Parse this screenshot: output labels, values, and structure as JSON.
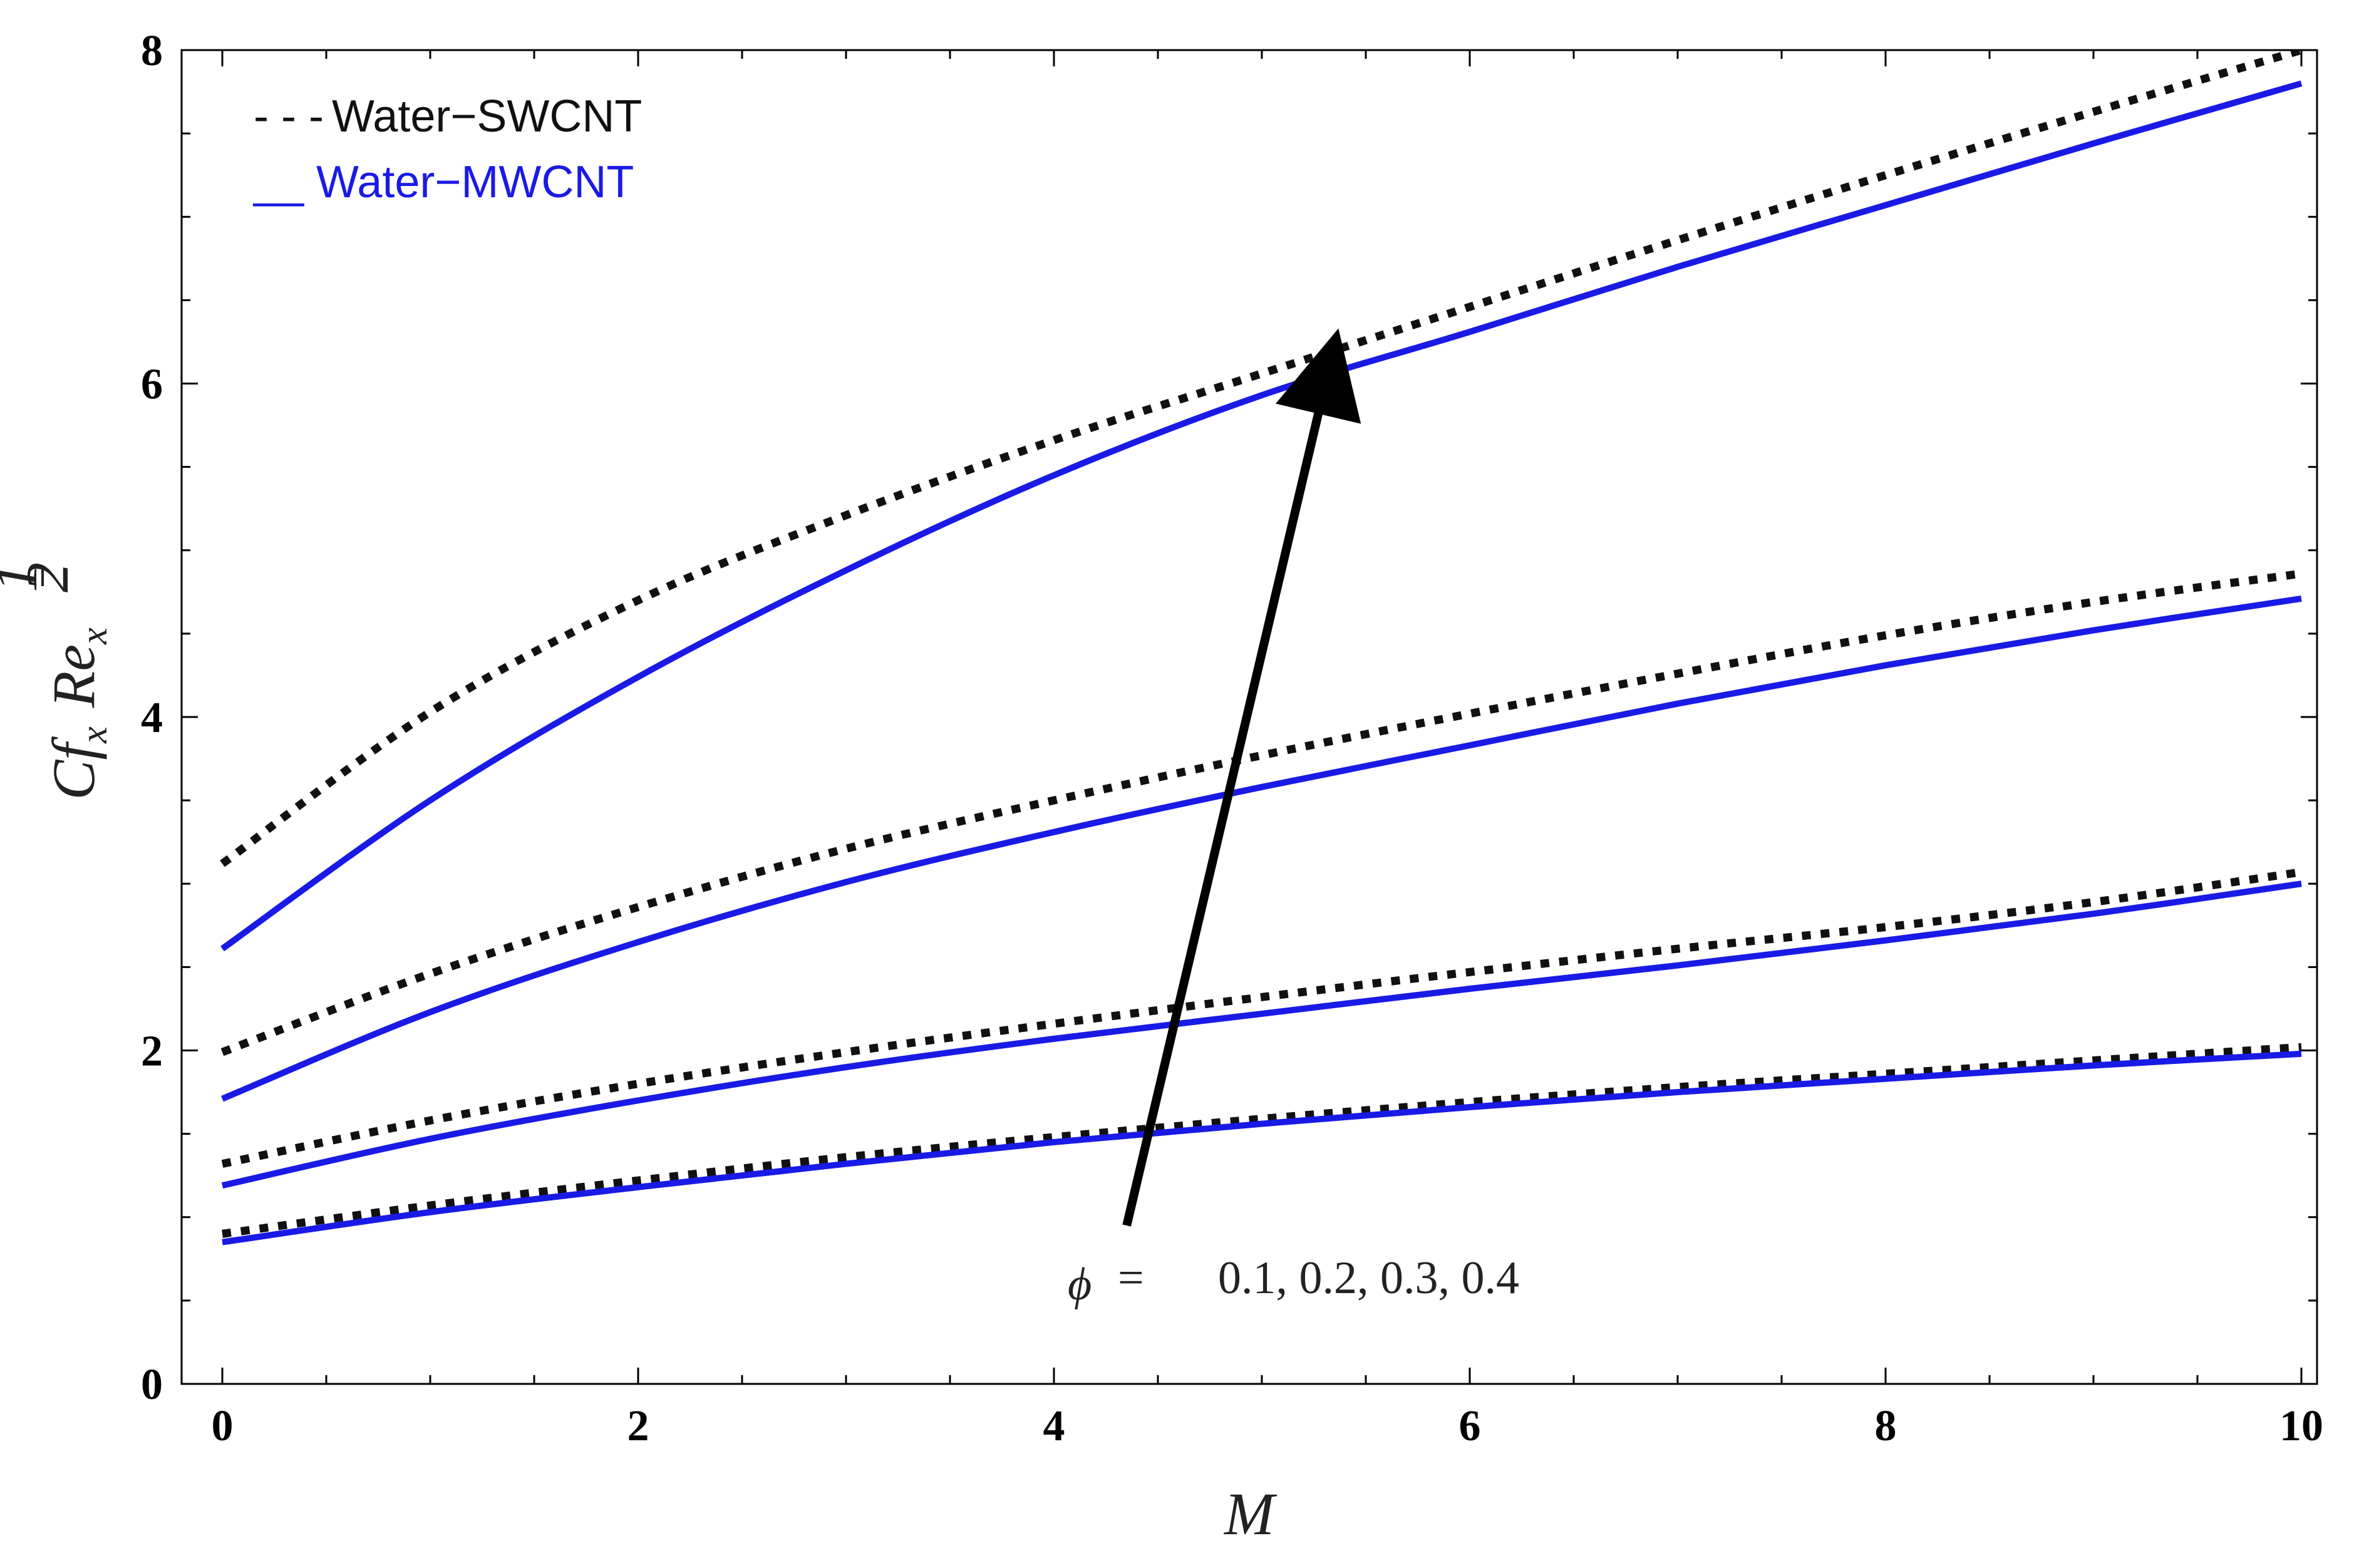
{
  "chart_data": {
    "type": "line",
    "title": "",
    "xlabel": "M",
    "ylabel": {
      "base": "Cf",
      "base_sub": "x",
      "term": "Re",
      "term_sub": "x",
      "exp_num": "1",
      "exp_den": "2"
    },
    "xlim": [
      0,
      10
    ],
    "ylim": [
      0,
      8
    ],
    "xticks": [
      0,
      2,
      4,
      6,
      8,
      10
    ],
    "yticks": [
      0,
      2,
      4,
      6,
      8
    ],
    "grid": false,
    "legend": {
      "placement": "top-left",
      "items": [
        {
          "marker": "- - -",
          "label": "Water−SWCNT",
          "color": "#111111",
          "style": "dotted"
        },
        {
          "marker": "__",
          "label": "Water−MWCNT",
          "color": "#1a1ae6",
          "style": "solid"
        }
      ]
    },
    "annotation": {
      "symbol": "ϕ",
      "equals": "=",
      "values": "0.1, 0.2, 0.3,  0.4",
      "arrow_from": [
        4.35,
        0.95
      ],
      "arrow_to": [
        5.35,
        6.3
      ]
    },
    "colors": {
      "swcnt": "#111111",
      "mwcnt": "#1a1ae6",
      "axis": "#000000"
    },
    "x": [
      0,
      1,
      2,
      3,
      4,
      5,
      6,
      7,
      8,
      9,
      10
    ],
    "series": [
      {
        "name": "Water-SWCNT ϕ=0.1",
        "group": "swcnt",
        "values": [
          0.9,
          1.07,
          1.22,
          1.36,
          1.48,
          1.59,
          1.69,
          1.78,
          1.86,
          1.94,
          2.02
        ]
      },
      {
        "name": "Water-MWCNT ϕ=0.1",
        "group": "mwcnt",
        "values": [
          0.85,
          1.03,
          1.18,
          1.32,
          1.45,
          1.56,
          1.66,
          1.75,
          1.83,
          1.91,
          1.98
        ]
      },
      {
        "name": "Water-SWCNT ϕ=0.2",
        "group": "swcnt",
        "values": [
          1.32,
          1.58,
          1.8,
          1.99,
          2.16,
          2.32,
          2.47,
          2.61,
          2.74,
          2.89,
          3.07
        ]
      },
      {
        "name": "Water-MWCNT ϕ=0.2",
        "group": "mwcnt",
        "values": [
          1.19,
          1.47,
          1.7,
          1.9,
          2.07,
          2.22,
          2.37,
          2.51,
          2.66,
          2.82,
          3.0
        ]
      },
      {
        "name": "Water-SWCNT ϕ=0.3",
        "group": "swcnt",
        "values": [
          1.99,
          2.46,
          2.86,
          3.21,
          3.5,
          3.77,
          4.02,
          4.26,
          4.49,
          4.69,
          4.86
        ]
      },
      {
        "name": "Water-MWCNT ϕ=0.3",
        "group": "mwcnt",
        "values": [
          1.71,
          2.23,
          2.65,
          3.01,
          3.31,
          3.58,
          3.83,
          4.08,
          4.31,
          4.52,
          4.71
        ]
      },
      {
        "name": "Water-SWCNT ϕ=0.4",
        "group": "swcnt",
        "values": [
          3.12,
          4.03,
          4.7,
          5.21,
          5.66,
          6.06,
          6.46,
          6.86,
          7.25,
          7.63,
          8.0
        ]
      },
      {
        "name": "Water-MWCNT ϕ=0.4",
        "group": "mwcnt",
        "values": [
          2.61,
          3.5,
          4.24,
          4.88,
          5.45,
          5.93,
          6.31,
          6.7,
          7.07,
          7.44,
          7.8
        ]
      }
    ]
  }
}
